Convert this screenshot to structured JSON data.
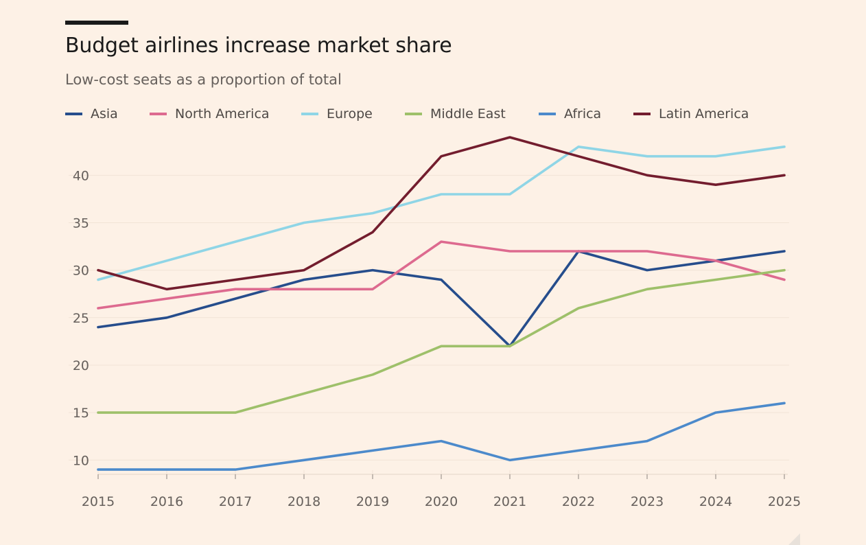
{
  "header": {
    "title": "Budget airlines increase market share",
    "subtitle": "Low-cost seats as a proportion of total"
  },
  "chart_data": {
    "type": "line",
    "title": "Budget airlines increase market share",
    "subtitle": "Low-cost seats as a proportion of total",
    "xlabel": "",
    "ylabel": "",
    "x": [
      "2015",
      "2016",
      "2017",
      "2018",
      "2019",
      "2020",
      "2021",
      "2022",
      "2023",
      "2024",
      "2025"
    ],
    "y_ticks": [
      "10",
      "15",
      "20",
      "25",
      "30",
      "35",
      "40"
    ],
    "ylim": [
      8.5,
      44
    ],
    "grid": true,
    "legend_position": "top-left",
    "series": [
      {
        "name": "Asia",
        "color": "#264D8C",
        "values": [
          24,
          25,
          27,
          29,
          30,
          29,
          22,
          32,
          30,
          31,
          32
        ]
      },
      {
        "name": "North America",
        "color": "#DD6A8F",
        "values": [
          26,
          27,
          28,
          28,
          28,
          33,
          32,
          32,
          32,
          31,
          29
        ]
      },
      {
        "name": "Europe",
        "color": "#8FD5E6",
        "values": [
          29,
          31,
          33,
          35,
          36,
          38,
          38,
          43,
          42,
          42,
          43
        ]
      },
      {
        "name": "Middle East",
        "color": "#9EC06A",
        "values": [
          15,
          15,
          15,
          17,
          19,
          22,
          22,
          26,
          28,
          29,
          30
        ]
      },
      {
        "name": "Africa",
        "color": "#4C8ACB",
        "values": [
          9,
          9,
          9,
          10,
          11,
          12,
          10,
          11,
          12,
          15,
          16
        ]
      },
      {
        "name": "Latin America",
        "color": "#731D2E",
        "values": [
          30,
          28,
          29,
          30,
          34,
          42,
          44,
          42,
          40,
          39,
          40
        ]
      }
    ]
  }
}
